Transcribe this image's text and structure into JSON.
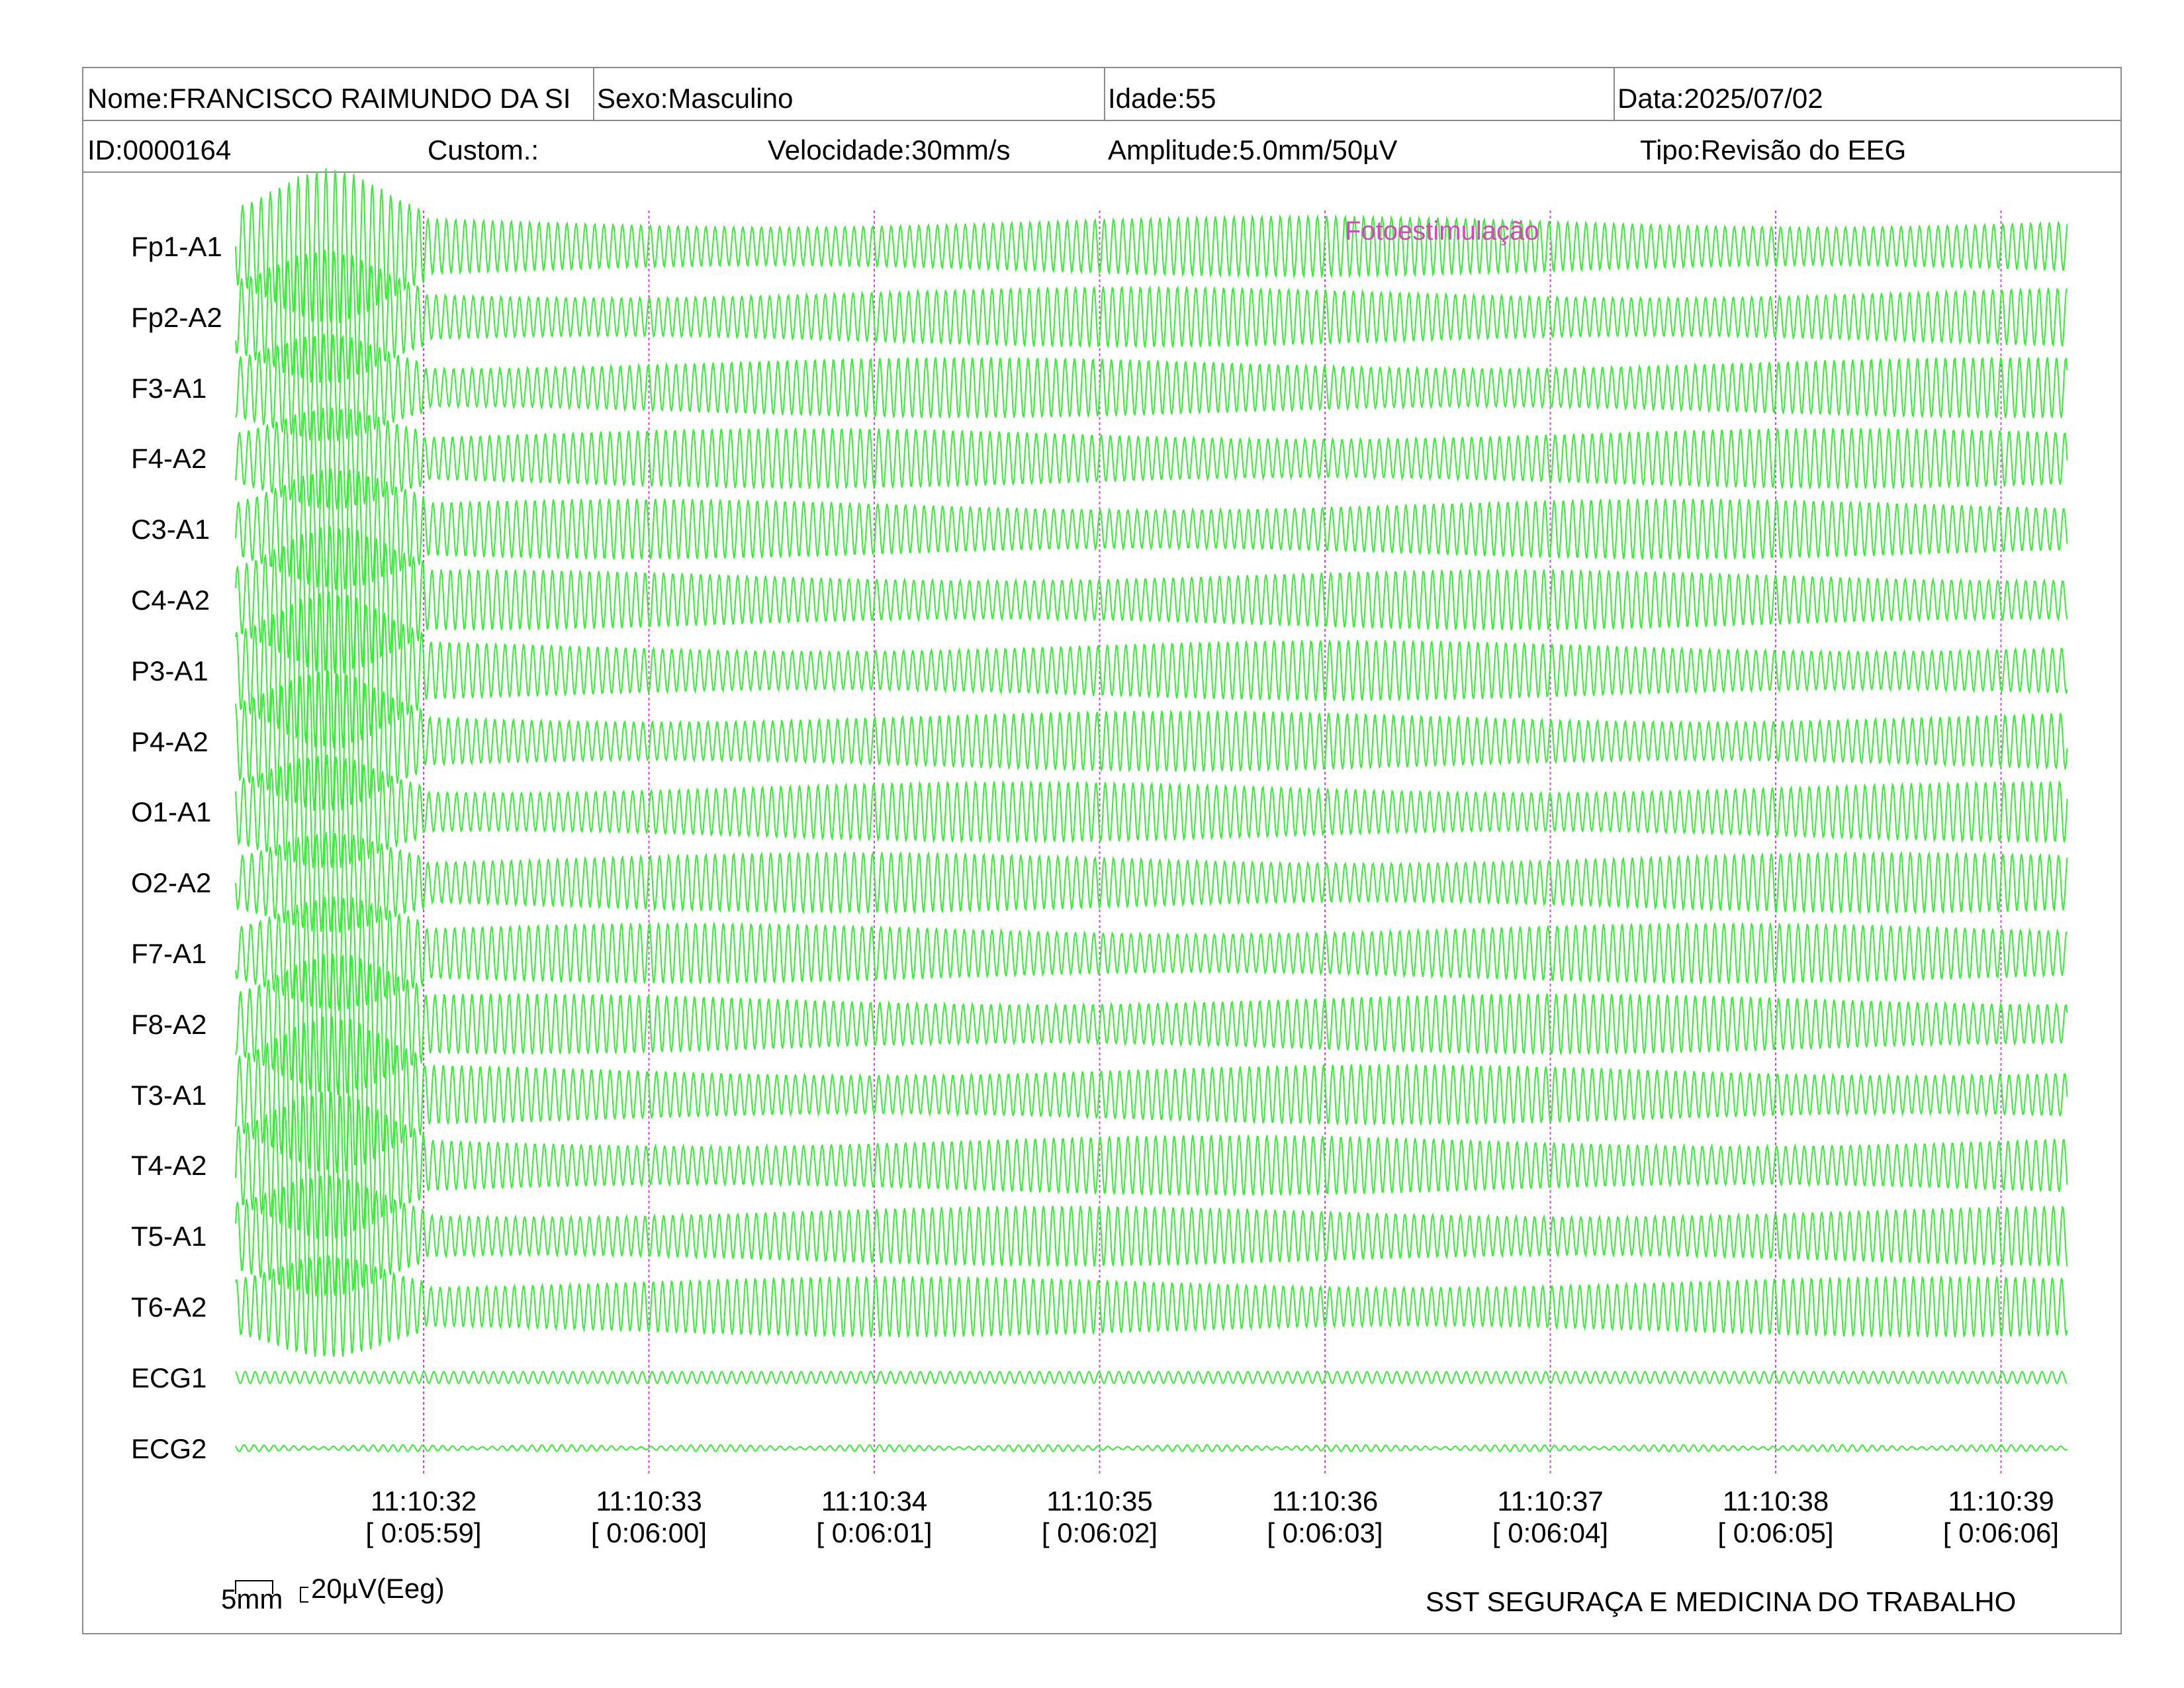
{
  "header": {
    "nome": "Nome:FRANCISCO RAIMUNDO DA SI",
    "sexo": "Sexo:Masculino",
    "idade": "Idade:55",
    "data": "Data:2025/07/02",
    "id": "ID:0000164",
    "custom": "Custom.:",
    "velocidade": "Velocidade:30mm/s",
    "amplitude": "Amplitude:5.0mm/50µV",
    "tipo": "Tipo:Revisão do EEG"
  },
  "annotation": {
    "text": "Fotoestimulação",
    "color": "#e040c0"
  },
  "scale": {
    "time_label": "5mm",
    "amp_label": "20µV(Eeg)"
  },
  "footer": {
    "company": "SST SEGURAÇA E MEDICINA DO TRABALHO"
  },
  "colors": {
    "trace": "#33ee33",
    "marker": "#d04ad8",
    "border": "#8a8a8a"
  },
  "chart_data": {
    "type": "line",
    "channels": [
      "Fp1-A1",
      "Fp2-A2",
      "F3-A1",
      "F4-A2",
      "C3-A1",
      "C4-A2",
      "P3-A1",
      "P4-A2",
      "O1-A1",
      "O2-A2",
      "F7-A1",
      "F8-A2",
      "T3-A1",
      "T4-A2",
      "T5-A1",
      "T6-A2",
      "ECG1",
      "ECG2"
    ],
    "time_ticks": [
      {
        "clock": "11:10:32",
        "elapsed": "[ 0:05:59]"
      },
      {
        "clock": "11:10:33",
        "elapsed": "[ 0:06:00]"
      },
      {
        "clock": "11:10:34",
        "elapsed": "[ 0:06:01]"
      },
      {
        "clock": "11:10:35",
        "elapsed": "[ 0:06:02]"
      },
      {
        "clock": "11:10:36",
        "elapsed": "[ 0:06:03]"
      },
      {
        "clock": "11:10:37",
        "elapsed": "[ 0:06:04]"
      },
      {
        "clock": "11:10:38",
        "elapsed": "[ 0:06:05]"
      },
      {
        "clock": "11:10:39",
        "elapsed": "[ 0:06:06]"
      }
    ]
  }
}
